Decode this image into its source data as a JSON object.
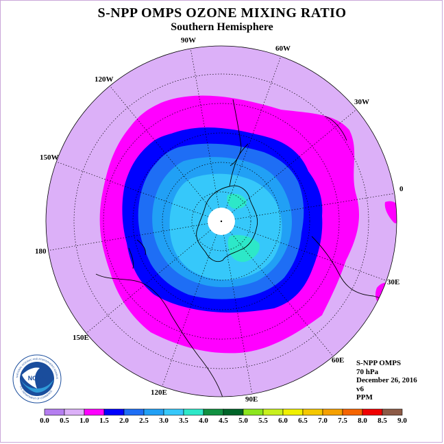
{
  "header": {
    "title": "S-NPP OMPS OZONE MIXING RATIO",
    "subtitle": "Southern Hemisphere"
  },
  "map": {
    "longitude_labels": [
      "90W",
      "60W",
      "30W",
      "0",
      "30E",
      "60E",
      "90E",
      "120E",
      "150E",
      "180",
      "150W",
      "120W"
    ],
    "contour_colors": {
      "background": "#dcb0f8",
      "1.0-1.5": "#ff00ff",
      "1.5-2.0": "#0000ff",
      "2.0-2.5": "#1e6ef5",
      "2.5-3.0": "#21a0f5",
      "3.0-3.5": "#36c8fa",
      "3.5-4.0": "#2de8c8",
      "missing": "#ffffff"
    }
  },
  "info": {
    "instrument": "S-NPP OMPS",
    "level": "70 hPa",
    "date": "December 26, 2016",
    "version": "v6",
    "units": "PPM"
  },
  "logo": {
    "text": "NOAA",
    "ring_text": "NATIONAL OCEANIC AND ATMOSPHERIC ADMINISTRATION",
    "ring_text_bottom": "U.S. DEPARTMENT OF COMMERCE"
  },
  "color_scale": {
    "labels": [
      "0.0",
      "0.5",
      "1.0",
      "1.5",
      "2.0",
      "2.5",
      "3.0",
      "3.5",
      "4.0",
      "4.5",
      "5.0",
      "5.5",
      "6.0",
      "6.5",
      "7.0",
      "7.5",
      "8.0",
      "8.5",
      "9.0"
    ],
    "colors": [
      "#b57ef0",
      "#dcb0f8",
      "#ff00ff",
      "#0000ff",
      "#1e6ef5",
      "#21a0f5",
      "#36c8fa",
      "#2de8c8",
      "#109040",
      "#006428",
      "#8ce61e",
      "#c8f01e",
      "#f0f000",
      "#f5c800",
      "#f5a000",
      "#f56400",
      "#f00000",
      "#8c5a46"
    ]
  }
}
